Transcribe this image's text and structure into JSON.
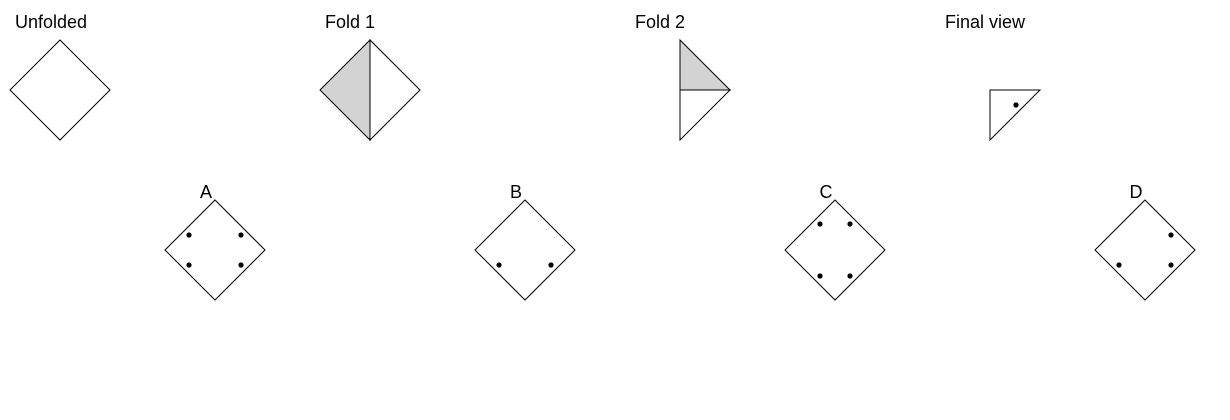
{
  "steps": {
    "unfolded": "Unfolded",
    "fold1": "Fold 1",
    "fold2": "Fold 2",
    "final": "Final view"
  },
  "options": {
    "a": "A",
    "b": "B",
    "c": "C",
    "d": "D"
  },
  "colors": {
    "stroke": "#000000",
    "shade": "#d3d3d3",
    "paper": "#ffffff"
  }
}
